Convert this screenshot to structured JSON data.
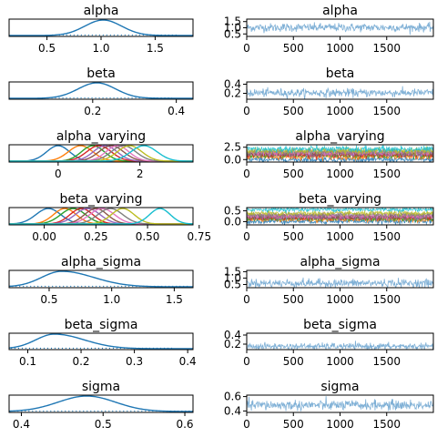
{
  "colors": {
    "density": "#1f77b4",
    "trace": "#7fb0d6",
    "multi": [
      "#1f77b4",
      "#ff7f0e",
      "#2ca02c",
      "#d62728",
      "#9467bd",
      "#8c564b",
      "#e377c2",
      "#7f7f7f",
      "#bcbd22",
      "#17becf"
    ]
  },
  "chart_data": [
    {
      "panel": "density",
      "type": "line",
      "title": "alpha",
      "xlim": [
        0.15,
        1.85
      ],
      "xticks": [
        "0.5",
        "1.0",
        "1.5"
      ],
      "xtick_values": [
        0.5,
        1.0,
        1.5
      ],
      "series": [
        {
          "mean": 1.02,
          "sd": 0.17
        }
      ]
    },
    {
      "panel": "trace",
      "type": "line",
      "title": "alpha",
      "xlim": [
        0,
        2000
      ],
      "xticks": [
        "0",
        "500",
        "1000",
        "1500"
      ],
      "xtick_values": [
        0,
        500,
        1000,
        1500
      ],
      "ylim": [
        0.3,
        1.7
      ],
      "yticks": [
        "0.5",
        "1.0",
        "1.5"
      ],
      "ytick_values": [
        0.5,
        1.0,
        1.5
      ],
      "series": [
        {
          "mean": 1.02,
          "sd": 0.17
        }
      ]
    },
    {
      "panel": "density",
      "type": "line",
      "title": "beta",
      "xlim": [
        0.0,
        0.44
      ],
      "xticks": [
        "0.2",
        "0.4"
      ],
      "xtick_values": [
        0.2,
        0.4
      ],
      "series": [
        {
          "mean": 0.21,
          "sd": 0.045
        }
      ]
    },
    {
      "panel": "trace",
      "type": "line",
      "title": "beta",
      "xlim": [
        0,
        2000
      ],
      "xticks": [
        "0",
        "500",
        "1000",
        "1500"
      ],
      "xtick_values": [
        0,
        500,
        1000,
        1500
      ],
      "ylim": [
        0.07,
        0.45
      ],
      "yticks": [
        "0.2",
        "0.4"
      ],
      "ytick_values": [
        0.2,
        0.4
      ],
      "series": [
        {
          "mean": 0.21,
          "sd": 0.045
        }
      ]
    },
    {
      "panel": "density",
      "type": "line",
      "title": "alpha_varying",
      "xlim": [
        -1.2,
        3.3
      ],
      "xticks": [
        "0",
        "2"
      ],
      "xtick_values": [
        0,
        2
      ],
      "series": [
        {
          "mean": 0.0,
          "sd": 0.28
        },
        {
          "mean": 0.55,
          "sd": 0.3
        },
        {
          "mean": 0.85,
          "sd": 0.28
        },
        {
          "mean": 1.0,
          "sd": 0.3
        },
        {
          "mean": 1.15,
          "sd": 0.29
        },
        {
          "mean": 1.3,
          "sd": 0.3
        },
        {
          "mean": 1.45,
          "sd": 0.28
        },
        {
          "mean": 1.6,
          "sd": 0.3
        },
        {
          "mean": 1.75,
          "sd": 0.3
        },
        {
          "mean": 2.1,
          "sd": 0.32
        }
      ]
    },
    {
      "panel": "trace",
      "type": "line",
      "title": "alpha_varying",
      "xlim": [
        0,
        2000
      ],
      "xticks": [
        "0",
        "500",
        "1000",
        "1500"
      ],
      "xtick_values": [
        0,
        500,
        1000,
        1500
      ],
      "ylim": [
        -0.5,
        3.0
      ],
      "yticks": [
        "0.0",
        "2.5"
      ],
      "ytick_values": [
        0.0,
        2.5
      ],
      "series": [
        {
          "mean": 0.0,
          "sd": 0.28
        },
        {
          "mean": 0.55,
          "sd": 0.3
        },
        {
          "mean": 0.85,
          "sd": 0.28
        },
        {
          "mean": 1.0,
          "sd": 0.3
        },
        {
          "mean": 1.15,
          "sd": 0.29
        },
        {
          "mean": 1.3,
          "sd": 0.3
        },
        {
          "mean": 1.45,
          "sd": 0.28
        },
        {
          "mean": 1.6,
          "sd": 0.3
        },
        {
          "mean": 1.75,
          "sd": 0.3
        },
        {
          "mean": 2.1,
          "sd": 0.32
        }
      ]
    },
    {
      "panel": "density",
      "type": "line",
      "title": "beta_varying",
      "xlim": [
        -0.17,
        0.72
      ],
      "xticks": [
        "0.00",
        "0.25",
        "0.50",
        "0.75"
      ],
      "xtick_values": [
        0.0,
        0.25,
        0.5,
        0.75
      ],
      "series": [
        {
          "mean": 0.02,
          "sd": 0.06
        },
        {
          "mean": 0.1,
          "sd": 0.055
        },
        {
          "mean": 0.14,
          "sd": 0.06
        },
        {
          "mean": 0.18,
          "sd": 0.055
        },
        {
          "mean": 0.21,
          "sd": 0.06
        },
        {
          "mean": 0.25,
          "sd": 0.055
        },
        {
          "mean": 0.28,
          "sd": 0.06
        },
        {
          "mean": 0.32,
          "sd": 0.06
        },
        {
          "mean": 0.38,
          "sd": 0.055
        },
        {
          "mean": 0.56,
          "sd": 0.05
        }
      ]
    },
    {
      "panel": "trace",
      "type": "line",
      "title": "beta_varying",
      "xlim": [
        0,
        2000
      ],
      "xticks": [
        "0",
        "500",
        "1000",
        "1500"
      ],
      "xtick_values": [
        0,
        500,
        1000,
        1500
      ],
      "ylim": [
        -0.15,
        0.65
      ],
      "yticks": [
        "0.0",
        "0.5"
      ],
      "ytick_values": [
        0.0,
        0.5
      ],
      "series": [
        {
          "mean": 0.02,
          "sd": 0.06
        },
        {
          "mean": 0.1,
          "sd": 0.055
        },
        {
          "mean": 0.14,
          "sd": 0.06
        },
        {
          "mean": 0.18,
          "sd": 0.055
        },
        {
          "mean": 0.21,
          "sd": 0.06
        },
        {
          "mean": 0.25,
          "sd": 0.055
        },
        {
          "mean": 0.28,
          "sd": 0.06
        },
        {
          "mean": 0.32,
          "sd": 0.06
        },
        {
          "mean": 0.38,
          "sd": 0.055
        },
        {
          "mean": 0.56,
          "sd": 0.05
        }
      ]
    },
    {
      "panel": "density",
      "type": "line",
      "title": "alpha_sigma",
      "xlim": [
        0.18,
        1.65
      ],
      "xticks": [
        "0.5",
        "1.0",
        "1.5"
      ],
      "xtick_values": [
        0.5,
        1.0,
        1.5
      ],
      "series": [
        {
          "mean": 0.6,
          "sd": 0.16,
          "skew": 1.6
        }
      ]
    },
    {
      "panel": "trace",
      "type": "line",
      "title": "alpha_sigma",
      "xlim": [
        0,
        2000
      ],
      "xticks": [
        "0",
        "500",
        "1000",
        "1500"
      ],
      "xtick_values": [
        0,
        500,
        1000,
        1500
      ],
      "ylim": [
        0.25,
        1.6
      ],
      "yticks": [
        "0.5",
        "1.0",
        "1.5"
      ],
      "ytick_values": [
        0.5,
        1.0,
        1.5
      ],
      "series": [
        {
          "mean": 0.6,
          "sd": 0.16
        }
      ]
    },
    {
      "panel": "density",
      "type": "line",
      "title": "beta_sigma",
      "xlim": [
        0.065,
        0.41
      ],
      "xticks": [
        "0.1",
        "0.2",
        "0.3",
        "0.4"
      ],
      "xtick_values": [
        0.1,
        0.2,
        0.3,
        0.4
      ],
      "series": [
        {
          "mean": 0.15,
          "sd": 0.035,
          "skew": 1.6
        }
      ]
    },
    {
      "panel": "trace",
      "type": "line",
      "title": "beta_sigma",
      "xlim": [
        0,
        2000
      ],
      "xticks": [
        "0",
        "500",
        "1000",
        "1500"
      ],
      "xtick_values": [
        0,
        500,
        1000,
        1500
      ],
      "ylim": [
        0.08,
        0.44
      ],
      "yticks": [
        "0.2",
        "0.4"
      ],
      "ytick_values": [
        0.2,
        0.4
      ],
      "series": [
        {
          "mean": 0.15,
          "sd": 0.035
        }
      ]
    },
    {
      "panel": "density",
      "type": "line",
      "title": "sigma",
      "xlim": [
        0.385,
        0.61
      ],
      "xticks": [
        "0.4",
        "0.5",
        "0.6"
      ],
      "xtick_values": [
        0.4,
        0.5,
        0.6
      ],
      "series": [
        {
          "mean": 0.48,
          "sd": 0.035
        }
      ]
    },
    {
      "panel": "trace",
      "type": "line",
      "title": "sigma",
      "xlim": [
        0,
        2000
      ],
      "xticks": [
        "0",
        "500",
        "1000",
        "1500"
      ],
      "xtick_values": [
        0,
        500,
        1000,
        1500
      ],
      "ylim": [
        0.38,
        0.62
      ],
      "yticks": [
        "0.4",
        "0.6"
      ],
      "ytick_values": [
        0.4,
        0.6
      ],
      "series": [
        {
          "mean": 0.48,
          "sd": 0.035
        }
      ]
    }
  ]
}
